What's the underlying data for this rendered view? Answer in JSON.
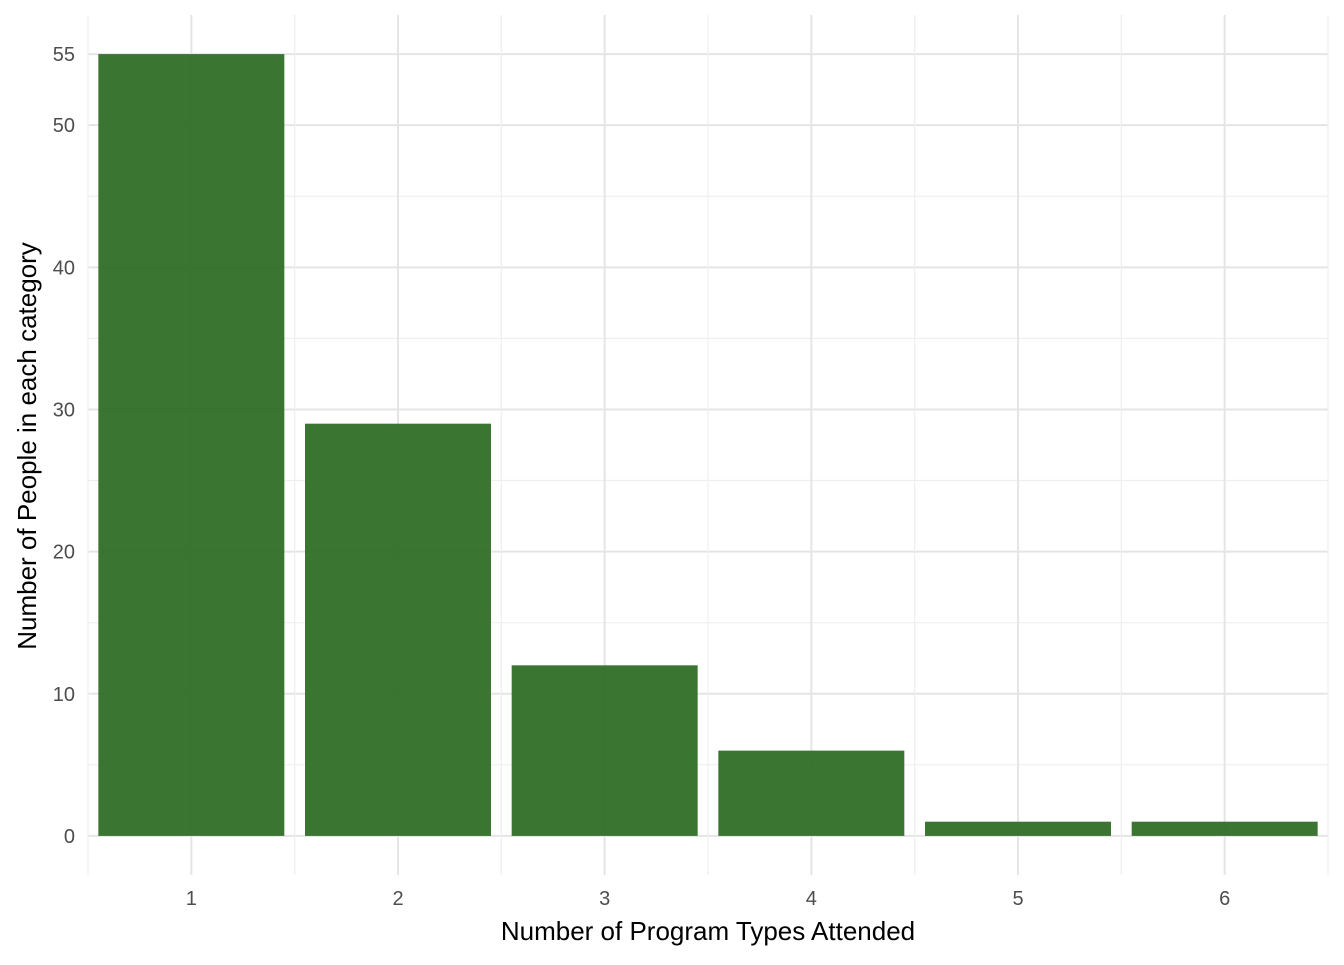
{
  "chart_data": {
    "type": "bar",
    "categories": [
      "1",
      "2",
      "3",
      "4",
      "5",
      "6"
    ],
    "values": [
      55,
      29,
      12,
      6,
      1,
      1
    ],
    "title": "",
    "xlabel": "Number of Program Types Attended",
    "ylabel": "Number of People in each category",
    "yticks": [
      "0",
      "10",
      "20",
      "30",
      "40",
      "50",
      "55"
    ],
    "ytick_values": [
      0,
      10,
      20,
      30,
      40,
      50,
      55
    ],
    "xlim": [
      0.5,
      6.5
    ],
    "ylim": [
      -2.75,
      57.75
    ],
    "grid": true,
    "legend": "none",
    "bar_color": "#2f6e27"
  }
}
